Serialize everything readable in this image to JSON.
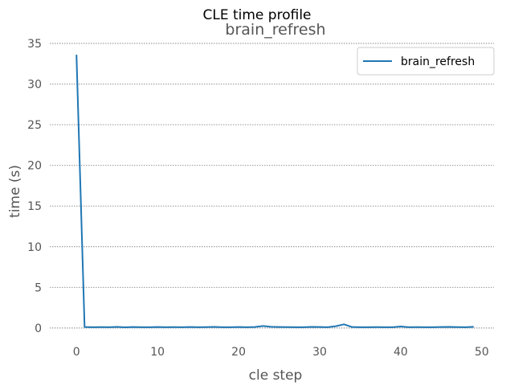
{
  "figure": {
    "suptitle": "CLE time profile"
  },
  "chart_data": {
    "type": "line",
    "title": "brain_refresh",
    "xlabel": "cle step",
    "ylabel": "time (s)",
    "xlim": [
      -2.5,
      51.5
    ],
    "ylim": [
      -1.2,
      35
    ],
    "xticks": [
      0,
      10,
      20,
      30,
      40,
      50
    ],
    "yticks": [
      0,
      5,
      10,
      15,
      20,
      25,
      30,
      35
    ],
    "grid": "horizontal dotted",
    "legend": "top-right",
    "series": [
      {
        "name": "brain_refresh",
        "color": "#1f77b4",
        "x": [
          0,
          1,
          2,
          3,
          4,
          5,
          6,
          7,
          8,
          9,
          10,
          11,
          12,
          13,
          14,
          15,
          16,
          17,
          18,
          19,
          20,
          21,
          22,
          23,
          24,
          25,
          26,
          27,
          28,
          29,
          30,
          31,
          32,
          33,
          34,
          35,
          36,
          37,
          38,
          39,
          40,
          41,
          42,
          43,
          44,
          45,
          46,
          47,
          48,
          49
        ],
        "values": [
          33.6,
          0.12,
          0.1,
          0.11,
          0.1,
          0.13,
          0.09,
          0.12,
          0.1,
          0.1,
          0.12,
          0.1,
          0.11,
          0.1,
          0.12,
          0.1,
          0.11,
          0.13,
          0.1,
          0.1,
          0.12,
          0.1,
          0.12,
          0.25,
          0.15,
          0.12,
          0.11,
          0.1,
          0.1,
          0.13,
          0.12,
          0.1,
          0.22,
          0.45,
          0.12,
          0.1,
          0.1,
          0.11,
          0.1,
          0.1,
          0.18,
          0.1,
          0.11,
          0.1,
          0.1,
          0.12,
          0.13,
          0.11,
          0.1,
          0.15
        ]
      }
    ]
  }
}
